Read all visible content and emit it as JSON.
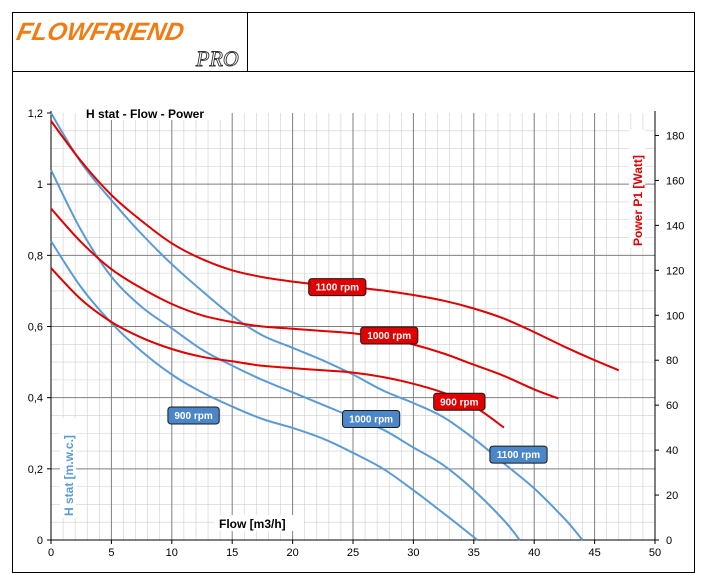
{
  "brand": {
    "logo_text": "FLOWFRIEND",
    "logo_sub": "PRO"
  },
  "chart_data": {
    "type": "line",
    "title": "H stat - Flow - Power",
    "xlabel": "Flow [m3/h]",
    "ylabel_left": "H stat [m.w.c.]",
    "ylabel_right": "Power P1  [Watt]",
    "xlim": [
      0,
      50
    ],
    "ylim_left": [
      0,
      1.2
    ],
    "ylim_right": [
      0,
      190
    ],
    "x_ticks": [
      "0",
      "5",
      "10",
      "15",
      "20",
      "25",
      "30",
      "35",
      "40",
      "45",
      "50"
    ],
    "y_left_ticks": [
      "0",
      "0,2",
      "0,4",
      "0,6",
      "0,8",
      "1",
      "1,2"
    ],
    "y_right_ticks": [
      "0",
      "20",
      "40",
      "60",
      "80",
      "100",
      "120",
      "140",
      "160",
      "180"
    ],
    "grid": true,
    "colors": {
      "head": "#5b9bd5",
      "power": "#e00000",
      "grid": "#7f7f7f"
    },
    "head_series": [
      {
        "name": "900 rpm",
        "axis": "left",
        "x": [
          0,
          2.5,
          5,
          7.5,
          10,
          12.5,
          15,
          17.5,
          20,
          22.5,
          25,
          27.5,
          30,
          32.5,
          34,
          35.3
        ],
        "y": [
          0.84,
          0.71,
          0.61,
          0.53,
          0.465,
          0.415,
          0.375,
          0.34,
          0.315,
          0.285,
          0.245,
          0.2,
          0.14,
          0.075,
          0.035,
          0
        ]
      },
      {
        "name": "1000 rpm",
        "axis": "left",
        "x": [
          0,
          2.5,
          5,
          7.5,
          10,
          12.5,
          15,
          17.5,
          20,
          22.5,
          25,
          27.5,
          30,
          32.5,
          35,
          37.5,
          38.8
        ],
        "y": [
          1.04,
          0.87,
          0.74,
          0.655,
          0.595,
          0.535,
          0.49,
          0.45,
          0.415,
          0.38,
          0.345,
          0.31,
          0.26,
          0.21,
          0.14,
          0.055,
          0
        ]
      },
      {
        "name": "1100 rpm",
        "axis": "left",
        "x": [
          0,
          2.5,
          5,
          7.5,
          10,
          12.5,
          15,
          17.5,
          20,
          22.5,
          25,
          27.5,
          30,
          32.5,
          35,
          37.5,
          40,
          42.5,
          44
        ],
        "y": [
          1.2,
          1.06,
          0.955,
          0.86,
          0.775,
          0.7,
          0.63,
          0.575,
          0.54,
          0.505,
          0.465,
          0.42,
          0.385,
          0.345,
          0.285,
          0.215,
          0.145,
          0.06,
          0
        ]
      }
    ],
    "power_series": [
      {
        "name": "900 rpm",
        "axis": "right",
        "x": [
          0,
          2.5,
          5,
          7.5,
          10,
          12.5,
          15,
          17.5,
          20,
          22.5,
          25,
          27.5,
          30,
          32.5,
          35,
          37.5
        ],
        "y": [
          121,
          107,
          97,
          90,
          85,
          81.5,
          79.5,
          77.5,
          76.5,
          75.5,
          74.5,
          72.5,
          69.5,
          65.5,
          59.5,
          50
        ]
      },
      {
        "name": "1000 rpm",
        "axis": "right",
        "x": [
          0,
          2.5,
          5,
          7.5,
          10,
          12.5,
          15,
          17.5,
          20,
          22.5,
          25,
          27.5,
          30,
          32.5,
          35,
          37.5,
          40,
          42
        ],
        "y": [
          147.5,
          132.5,
          120.5,
          112,
          105,
          100,
          97,
          95,
          94,
          93,
          92,
          90,
          87,
          83,
          78,
          73,
          67,
          63
        ]
      },
      {
        "name": "1100 rpm",
        "axis": "right",
        "x": [
          0,
          2.5,
          5,
          7.5,
          10,
          12.5,
          15,
          17.5,
          20,
          22.5,
          25,
          27.5,
          30,
          32.5,
          35,
          37.5,
          40,
          42.5,
          45,
          47
        ],
        "y": [
          186.5,
          168.5,
          153.5,
          142,
          132,
          125,
          120,
          117,
          115,
          113.5,
          112.5,
          111,
          109,
          106.5,
          103,
          98.5,
          92.5,
          86,
          80,
          75.5
        ]
      }
    ],
    "labels": [
      {
        "text": "900 rpm",
        "series": "head",
        "x": 11.8,
        "y": 0.35
      },
      {
        "text": "1000 rpm",
        "series": "head",
        "x": 26.5,
        "y": 0.34
      },
      {
        "text": "1100 rpm",
        "series": "head",
        "x": 38.7,
        "y": 0.24
      },
      {
        "text": "1100 rpm",
        "series": "power",
        "x": 23.7,
        "y": 112.5
      },
      {
        "text": "1000 rpm",
        "series": "power",
        "x": 28,
        "y": 91
      },
      {
        "text": "900 rpm",
        "series": "power",
        "x": 33.8,
        "y": 61.5
      }
    ]
  }
}
